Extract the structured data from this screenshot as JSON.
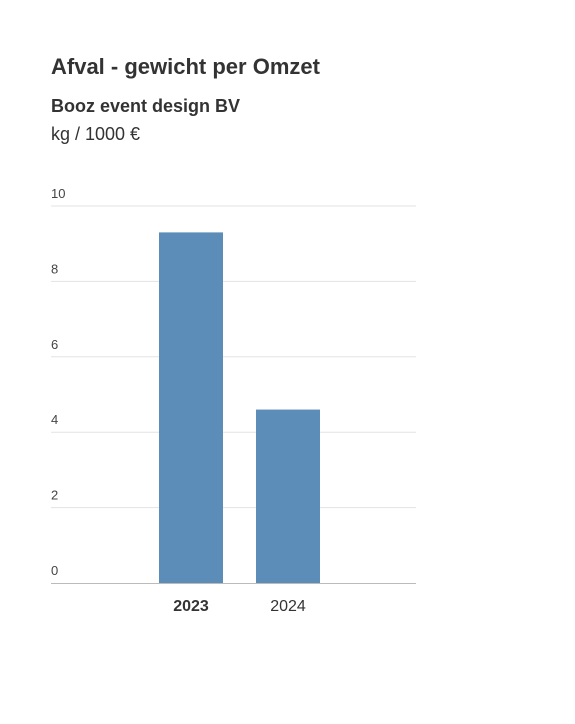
{
  "header": {
    "title": "Afval - gewicht per Omzet",
    "subtitle": "Booz event design BV",
    "unit": "kg / 1000 €"
  },
  "colors": {
    "bar": "#5b8db8",
    "grid": "#e3e3e3",
    "axis": "#bbbbbb"
  },
  "chart_data": {
    "type": "bar",
    "categories": [
      "2023",
      "2024"
    ],
    "values": [
      9.3,
      4.6
    ],
    "highlighted_category": "2023",
    "ylim": [
      0,
      10
    ],
    "yticks": [
      0,
      2,
      4,
      6,
      8,
      10
    ],
    "grid": true,
    "legend": "none"
  }
}
